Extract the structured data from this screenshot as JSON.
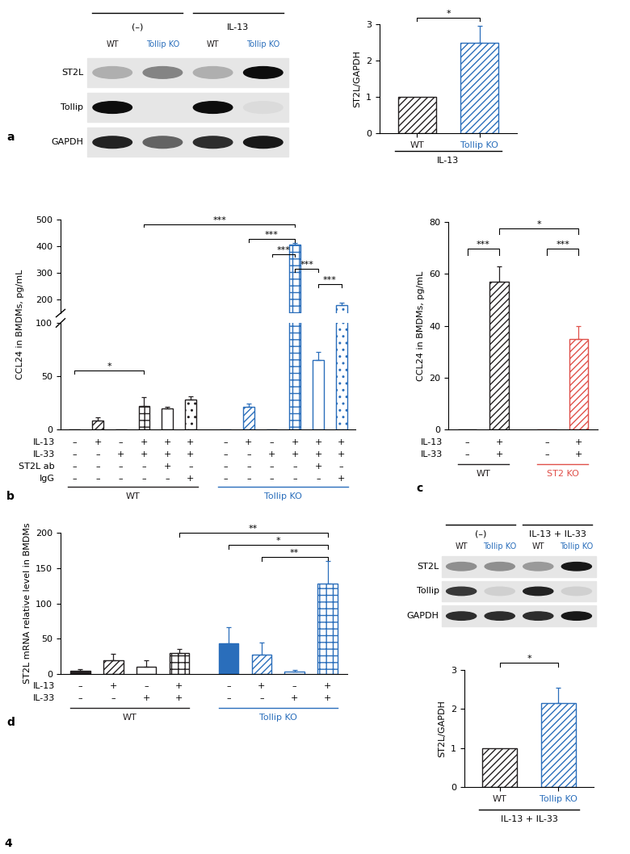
{
  "figure_number": "4",
  "blots": [
    {
      "headers": [
        "(–)",
        "IL-13"
      ],
      "lanes": [
        "WT",
        "Tollip KO",
        "WT",
        "Tollip KO"
      ],
      "rows": [
        "ST2L",
        "Tollip",
        "GAPDH"
      ]
    },
    {
      "headers": [
        "(–)",
        "IL-13 + IL-33"
      ],
      "lanes": [
        "WT",
        "Tollip KO",
        "WT",
        "Tollip KO"
      ],
      "rows": [
        "ST2L",
        "Tollip",
        "GAPDH"
      ]
    }
  ],
  "chart_data": [
    {
      "panel": "a",
      "type": "bar",
      "categories": [
        "WT",
        "Tollip KO"
      ],
      "values": [
        1,
        2.5
      ],
      "errors": [
        0,
        0.45
      ],
      "colors": [
        "#231f20",
        "#2a6ebb"
      ],
      "ylim": [
        0,
        3
      ],
      "yticks": [
        0,
        1,
        2,
        3
      ],
      "y_label": "ST2L/GAPDH",
      "group_label": "IL-13",
      "significance": [
        {
          "from": 0,
          "to": 1,
          "label": "*"
        }
      ]
    },
    {
      "panel": "b",
      "type": "bar",
      "y_label": "CCL24 in BMDMs, pg/mL",
      "tick_labels": "y",
      "groups": [
        {
          "name": "WT",
          "color": "#231f20",
          "values": [
            0,
            8,
            0,
            22,
            20,
            28
          ],
          "errors": [
            0,
            3,
            0,
            8,
            1,
            3
          ]
        },
        {
          "name": "Tollip KO",
          "color": "#2a6ebb",
          "values": [
            0,
            21,
            0,
            405,
            65,
            180
          ],
          "errors": [
            0,
            3,
            0,
            8,
            8,
            10
          ]
        }
      ],
      "conditions": [
        {
          "name": "IL-13",
          "marks": [
            "–",
            "+",
            "–",
            "+",
            "+",
            "+",
            "–",
            "+",
            "–",
            "+",
            "+",
            "+"
          ]
        },
        {
          "name": "IL-33",
          "marks": [
            "–",
            "–",
            "+",
            "+",
            "+",
            "+",
            "–",
            "–",
            "+",
            "+",
            "+",
            "+"
          ]
        },
        {
          "name": "ST2L ab",
          "marks": [
            "–",
            "–",
            "–",
            "–",
            "+",
            "–",
            "–",
            "–",
            "–",
            "–",
            "+",
            "–"
          ]
        },
        {
          "name": "IgG",
          "marks": [
            "–",
            "–",
            "–",
            "–",
            "–",
            "+",
            "–",
            "–",
            "–",
            "–",
            "–",
            "+"
          ]
        }
      ],
      "segments": [
        {
          "ylim": [
            0,
            100
          ],
          "yticks": [
            0,
            50,
            100
          ]
        },
        {
          "ylim": [
            150,
            500
          ],
          "yticks": [
            200,
            300,
            400,
            500
          ]
        }
      ],
      "significance": [
        {
          "from": 0,
          "to": 3,
          "label": "*"
        },
        {
          "from": 3,
          "to": 9,
          "label": "***"
        },
        {
          "from": 7,
          "to": 9,
          "label": "***"
        },
        {
          "from": 8,
          "to": 9,
          "label": "***"
        },
        {
          "from": 9,
          "to": 10,
          "label": "***"
        },
        {
          "from": 10,
          "to": 11,
          "label": "***"
        }
      ]
    },
    {
      "panel": "c",
      "type": "bar",
      "y_label": "CCL24 in BMDMs, pg/mL",
      "tick_labels": "y",
      "groups": [
        {
          "name": "WT",
          "color": "#231f20",
          "values": [
            0,
            57
          ],
          "errors": [
            0,
            6
          ]
        },
        {
          "name": "ST2 KO",
          "color": "#e0504a",
          "values": [
            0,
            35
          ],
          "errors": [
            0,
            5
          ]
        }
      ],
      "conditions": [
        {
          "name": "IL-13",
          "marks": [
            "–",
            "+",
            "–",
            "+"
          ]
        },
        {
          "name": "IL-33",
          "marks": [
            "–",
            "+",
            "–",
            "+"
          ]
        }
      ],
      "ylim": [
        0,
        80
      ],
      "yticks": [
        0,
        20,
        40,
        60,
        80
      ],
      "significance": [
        {
          "from": 0,
          "to": 1,
          "label": "***"
        },
        {
          "from": 1,
          "to": 3,
          "label": "*"
        },
        {
          "from": 2,
          "to": 3,
          "label": "***"
        }
      ]
    },
    {
      "panel": "d",
      "type": "bar",
      "y_label": "ST2L mRNA relative level in BMDMs",
      "tick_labels": "y",
      "groups": [
        {
          "name": "WT",
          "color": "#231f20",
          "values": [
            5,
            20,
            10,
            30
          ],
          "errors": [
            2,
            9,
            10,
            6
          ]
        },
        {
          "name": "Tollip KO",
          "color": "#2a6ebb",
          "values": [
            43,
            28,
            3,
            128
          ],
          "errors": [
            23,
            17,
            3,
            32
          ]
        }
      ],
      "conditions": [
        {
          "name": "IL-13",
          "marks": [
            "–",
            "+",
            "–",
            "+",
            "–",
            "+",
            "–",
            "+"
          ]
        },
        {
          "name": "IL-33",
          "marks": [
            "–",
            "–",
            "+",
            "+",
            "–",
            "–",
            "+",
            "+"
          ]
        }
      ],
      "ylim": [
        0,
        200
      ],
      "yticks": [
        0,
        50,
        100,
        150,
        200
      ],
      "significance": [
        {
          "from": 3,
          "to": 7,
          "label": "**"
        },
        {
          "from": 4,
          "to": 7,
          "label": "*"
        },
        {
          "from": 5,
          "to": 7,
          "label": "**"
        }
      ]
    },
    {
      "type": "bar",
      "categories": [
        "WT",
        "Tollip KO"
      ],
      "values": [
        1,
        2.15
      ],
      "errors": [
        0,
        0.4
      ],
      "colors": [
        "#231f20",
        "#2a6ebb"
      ],
      "ylim": [
        0,
        3
      ],
      "yticks": [
        0,
        1,
        2,
        3
      ],
      "y_label": "ST2L/GAPDH",
      "group_label": "IL-13 + IL-33",
      "significance": [
        {
          "from": 0,
          "to": 1,
          "label": "*"
        }
      ]
    }
  ]
}
